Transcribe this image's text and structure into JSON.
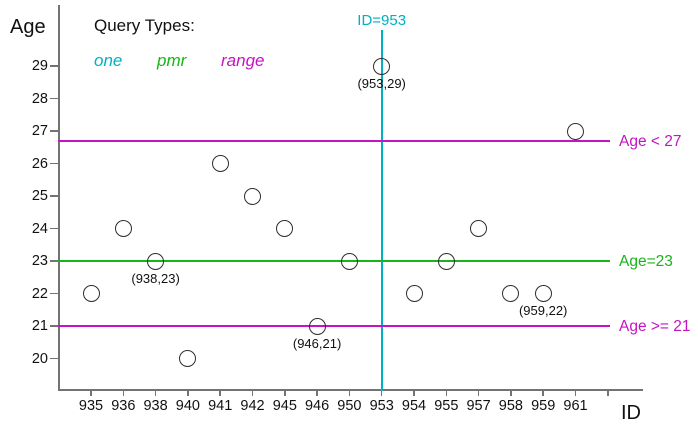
{
  "figure": {
    "y_axis_title": "Age",
    "x_axis_title": "ID"
  },
  "legend": {
    "heading": "Query Types:",
    "items": [
      {
        "label": "one",
        "color": "#00b0c4"
      },
      {
        "label": "pmr",
        "color": "#17b517"
      },
      {
        "label": "range",
        "color": "#c413c4"
      }
    ]
  },
  "chart_data": {
    "type": "scatter",
    "title": "",
    "xlabel": "ID",
    "ylabel": "Age",
    "x_categories": [
      "935",
      "936",
      "938",
      "940",
      "941",
      "942",
      "945",
      "946",
      "950",
      "953",
      "954",
      "955",
      "957",
      "958",
      "959",
      "961"
    ],
    "y_ticks": [
      29,
      28,
      27,
      26,
      25,
      24,
      23,
      22,
      21,
      20
    ],
    "ylim": [
      19.5,
      29.9
    ],
    "grid": false,
    "marker": {
      "shape": "circle",
      "fill": "none",
      "stroke": "#2e2e2e"
    },
    "points": [
      {
        "id": "935",
        "age": 22
      },
      {
        "id": "936",
        "age": 24
      },
      {
        "id": "938",
        "age": 23,
        "label": "(938,23)"
      },
      {
        "id": "940",
        "age": 20
      },
      {
        "id": "941",
        "age": 26
      },
      {
        "id": "942",
        "age": 25
      },
      {
        "id": "945",
        "age": 24
      },
      {
        "id": "946",
        "age": 21,
        "label": "(946,21)"
      },
      {
        "id": "950",
        "age": 23
      },
      {
        "id": "953",
        "age": 29,
        "label": "(953,29)"
      },
      {
        "id": "954",
        "age": 22
      },
      {
        "id": "955",
        "age": 23
      },
      {
        "id": "957",
        "age": 24
      },
      {
        "id": "958",
        "age": 22
      },
      {
        "id": "959",
        "age": 22,
        "label": "(959,22)"
      },
      {
        "id": "961",
        "age": 27
      }
    ],
    "query_lines": [
      {
        "query_type": "one",
        "orientation": "vertical",
        "x": "953",
        "label": "ID=953",
        "color": "#00b0c4"
      },
      {
        "query_type": "range",
        "orientation": "horizontal",
        "y": 26.7,
        "label": "Age < 27",
        "color": "#c413c4"
      },
      {
        "query_type": "pmr",
        "orientation": "horizontal",
        "y": 23,
        "label": "Age=23",
        "color": "#17b517"
      },
      {
        "query_type": "range",
        "orientation": "horizontal",
        "y": 21,
        "label": "Age >= 21",
        "color": "#c413c4"
      }
    ]
  }
}
